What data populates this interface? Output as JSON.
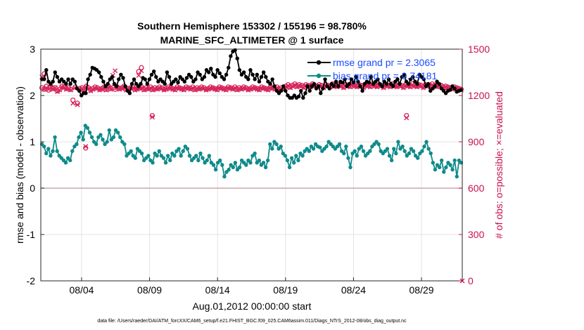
{
  "chart_data": {
    "type": "line",
    "title_line1": "Southern Hemisphere 153302 / 155196 = 98.780%",
    "title_line2": "MARINE_SFC_ALTIMETER @ 1 surface",
    "ylabel_left": "rmse and bias (model - observation)",
    "ylabel_right": "# of obs: o=possible; ×=evaluated",
    "xlabel": "Aug.01,2012 00:00:00 start",
    "footnote": "data file: /Users/raeder/DAI/ATM_forcXX/CAM6_setup/f.e21.FHIST_BGC.f09_025.CAM6assim.011/Diags_NTrS_2012-08/obs_diag_output.nc",
    "x_range_days": [
      0,
      31
    ],
    "ylim_left": [
      -2,
      3
    ],
    "ylim_right": [
      0,
      1500
    ],
    "left_ticks": [
      -2,
      -1,
      0,
      1,
      2,
      3
    ],
    "left_tick_labels": [
      "-2",
      "-1",
      "0",
      "1",
      "2",
      "3"
    ],
    "right_ticks": [
      0,
      300,
      600,
      900,
      1200,
      1500
    ],
    "right_tick_labels": [
      "0",
      "300",
      "600",
      "900",
      "1200",
      "1500"
    ],
    "x_ticks_days": [
      3,
      8,
      13,
      18,
      23,
      28
    ],
    "x_tick_labels": [
      "08/04",
      "08/09",
      "08/14",
      "08/19",
      "08/24",
      "08/29"
    ],
    "grid": true,
    "legend_position": "top-right",
    "series": [
      {
        "name": "rmse",
        "legend_label": "rmse grand pr = 2.3065",
        "color": "#000000",
        "axis": "left",
        "values": [
          2.35,
          2.35,
          2.55,
          2.3,
          2.25,
          2.3,
          2.5,
          2.4,
          2.3,
          2.35,
          2.3,
          2.25,
          2.35,
          2.25,
          2.35,
          2.3,
          2.15,
          2.1,
          2.0,
          2.05,
          2.05,
          2.35,
          2.45,
          2.6,
          2.58,
          2.55,
          2.5,
          2.4,
          2.3,
          2.2,
          2.25,
          2.35,
          2.4,
          2.25,
          2.2,
          2.35,
          2.45,
          2.38,
          2.2,
          2.1,
          2.05,
          2.25,
          2.35,
          2.25,
          2.2,
          2.25,
          2.38,
          2.35,
          2.25,
          2.35,
          2.45,
          2.52,
          2.4,
          2.3,
          2.35,
          2.3,
          2.25,
          2.5,
          2.4,
          2.25,
          2.3,
          2.35,
          2.28,
          2.4,
          2.35,
          2.3,
          2.38,
          2.45,
          2.4,
          2.3,
          2.35,
          2.5,
          2.45,
          2.35,
          2.4,
          2.55,
          2.5,
          2.58,
          2.45,
          2.4,
          2.55,
          2.48,
          2.4,
          2.35,
          2.45,
          2.6,
          2.85,
          2.95,
          2.98,
          2.8,
          2.55,
          2.45,
          2.5,
          2.4,
          2.35,
          2.55,
          2.45,
          2.35,
          2.45,
          2.3,
          2.4,
          2.5,
          2.4,
          2.3,
          2.25,
          2.35,
          2.2,
          2.1,
          2.05,
          2.1,
          2.2,
          2.1,
          2.0,
          1.95,
          1.95,
          2.0,
          1.95,
          1.98,
          2.1,
          1.95,
          2.05,
          2.2,
          2.1,
          2.2,
          2.25,
          2.15,
          2.2,
          2.05,
          2.15,
          2.35,
          2.2,
          2.15,
          2.25,
          2.2,
          2.3,
          2.2,
          2.3,
          2.28,
          2.35,
          2.2,
          2.25,
          2.35,
          2.28,
          2.4,
          2.3,
          2.2,
          2.1,
          2.25,
          2.3,
          2.28,
          2.4,
          2.25,
          2.3,
          2.35,
          2.25,
          2.2,
          2.3,
          2.25,
          2.35,
          2.25,
          2.2,
          2.3,
          2.35,
          2.25,
          2.4,
          2.45,
          2.3,
          2.25,
          2.35,
          2.4,
          2.3,
          2.25,
          2.45,
          2.4,
          2.35,
          2.2,
          2.25,
          2.1,
          2.15,
          2.2,
          2.3,
          2.25,
          2.15,
          2.1,
          2.05,
          2.1,
          2.12,
          2.2,
          2.15,
          2.08,
          2.1,
          2.12
        ]
      },
      {
        "name": "bias",
        "legend_label": "bias grand pr = 0.74181",
        "color": "#0f8a8a",
        "axis": "left",
        "values": [
          0.95,
          0.9,
          0.75,
          0.85,
          0.7,
          0.8,
          1.1,
          0.8,
          0.7,
          0.65,
          0.6,
          0.55,
          0.65,
          0.6,
          0.8,
          0.9,
          0.95,
          1.1,
          1.2,
          1.05,
          1.35,
          1.3,
          1.2,
          1.1,
          1.0,
          0.95,
          1.1,
          1.15,
          1.05,
          0.95,
          1.0,
          1.25,
          1.05,
          1.1,
          1.25,
          1.2,
          1.1,
          1.0,
          0.95,
          0.7,
          0.75,
          0.8,
          0.7,
          0.65,
          0.85,
          0.8,
          0.75,
          0.6,
          0.65,
          0.7,
          0.6,
          0.55,
          0.75,
          0.7,
          0.8,
          0.7,
          0.65,
          0.55,
          0.7,
          0.6,
          0.75,
          0.7,
          0.8,
          0.85,
          0.7,
          0.8,
          0.9,
          0.85,
          0.7,
          0.6,
          0.65,
          0.7,
          0.6,
          0.75,
          0.65,
          0.55,
          0.6,
          0.7,
          0.55,
          0.5,
          0.4,
          0.55,
          0.6,
          0.5,
          0.25,
          0.35,
          0.4,
          0.5,
          0.45,
          0.55,
          0.4,
          0.45,
          0.6,
          0.55,
          0.5,
          0.6,
          0.55,
          0.7,
          0.75,
          0.55,
          0.6,
          0.5,
          0.55,
          0.45,
          0.6,
          0.95,
          0.85,
          1.0,
          0.95,
          0.85,
          0.9,
          0.75,
          0.7,
          0.6,
          0.45,
          0.65,
          0.55,
          0.7,
          0.6,
          0.75,
          0.7,
          0.8,
          0.85,
          0.8,
          0.9,
          0.85,
          0.95,
          0.9,
          0.88,
          0.8,
          0.85,
          0.9,
          1.0,
          0.95,
          0.9,
          0.85,
          0.9,
          0.95,
          0.8,
          0.75,
          0.9,
          0.65,
          0.45,
          0.75,
          0.8,
          0.7,
          0.85,
          0.9,
          0.8,
          0.7,
          0.75,
          0.8,
          0.9,
          0.95,
          1.0,
          0.95,
          0.8,
          0.75,
          0.8,
          0.85,
          0.7,
          0.6,
          0.85,
          0.75,
          1.0,
          0.85,
          0.9,
          0.8,
          0.7,
          0.75,
          0.85,
          0.8,
          0.7,
          0.65,
          0.75,
          0.8,
          0.9,
          1.0,
          0.85,
          0.75,
          0.55,
          0.4,
          0.5,
          0.45,
          0.6,
          0.35,
          0.45,
          0.55,
          0.5,
          0.4,
          0.6,
          0.25,
          0.6,
          0.55
        ]
      },
      {
        "name": "obs_possible",
        "marker": "o",
        "color": "#d6245a",
        "axis": "right",
        "values": [
          1250,
          1240,
          1260,
          1235,
          1255,
          1245,
          1250,
          1230,
          1240,
          1260,
          1255,
          1245,
          1250,
          1240,
          1170,
          1255,
          1150,
          1245,
          1250,
          1240,
          1260,
          1250,
          1235,
          1245,
          1255,
          1250,
          1240,
          1245,
          1255,
          1240,
          1260,
          1245,
          1250,
          1240,
          1255,
          1245,
          1250,
          1260,
          1240,
          1245,
          1250,
          1255,
          1240,
          1245,
          1250,
          1255,
          1240,
          1250,
          1245,
          1255,
          1240,
          1250,
          1245,
          1255,
          1250,
          1240,
          1245,
          1255,
          1250,
          1245,
          1240,
          1255,
          1250,
          1245,
          1240,
          1255,
          1250,
          1245,
          1255,
          1240,
          1250,
          1245,
          1255,
          1250,
          1240,
          1245,
          1255,
          1250,
          1245,
          1240,
          1255,
          1250,
          1245,
          1240,
          1255,
          1250,
          1245,
          1255,
          1240,
          1250,
          1245,
          1255,
          1250,
          1240,
          1245,
          1255,
          1250,
          1245,
          1240,
          1255,
          1250,
          1245,
          1240,
          1255,
          1250,
          1245,
          1255,
          1240,
          1250,
          1245,
          1260,
          1270,
          1255,
          1265,
          1275,
          1260,
          1270,
          1265,
          1255,
          1270,
          1265,
          1260,
          1275,
          1265,
          1260,
          1270,
          1265,
          1255,
          1270,
          1265,
          1260,
          1275,
          1265,
          1260,
          1270,
          1265,
          1255,
          1270,
          1265,
          1260,
          1275,
          1265,
          1260,
          1270,
          1265,
          1255,
          1270,
          1265,
          1260,
          1275,
          1265,
          1260,
          1270,
          1265,
          1255,
          1270,
          1265,
          1260,
          1275,
          1265,
          1260,
          1270,
          1265,
          1255,
          1270,
          1265,
          1260,
          1275,
          1265,
          1260,
          1270,
          1265,
          1255,
          1270,
          1265,
          1260,
          1275,
          1265,
          1260,
          1270,
          1265,
          1255,
          1260,
          1255,
          1250,
          1245,
          1255,
          1250,
          1245,
          1240
        ]
      },
      {
        "name": "obs_evaluated",
        "marker": "x",
        "color": "#d6245a",
        "axis": "right",
        "values": [
          1320,
          1240,
          1250,
          1240,
          1255,
          1240,
          1250,
          1225,
          1235,
          1255,
          1250,
          1240,
          1245,
          1235,
          1150,
          1250,
          1140,
          1240,
          1245,
          1235,
          1255,
          1245,
          1230,
          1240,
          1250,
          1245,
          1235,
          1240,
          1250,
          1235,
          1255,
          1240,
          1330,
          1360,
          1250,
          1240,
          1245,
          1255,
          1235,
          1240,
          1245,
          1250,
          1235,
          1240,
          1245,
          1250,
          1235,
          1245,
          1240,
          1250,
          1235,
          1245,
          1240,
          1250,
          1245,
          1235,
          1240,
          1250,
          1245,
          1240,
          1235,
          1250,
          1245,
          1240,
          1235,
          1250,
          1245,
          1240,
          1250,
          1235,
          1245,
          1240,
          1250,
          1245,
          1235,
          1240,
          1250,
          1245,
          1240,
          1235,
          1250,
          1245,
          1240,
          1235,
          1250,
          1245,
          1240,
          1250,
          1235,
          1245,
          1240,
          1250,
          1245,
          1235,
          1240,
          1250,
          1245,
          1240,
          1235,
          1250,
          1245,
          1240,
          1235,
          1250,
          1245,
          1240,
          1250,
          1235,
          1245,
          1240,
          1255,
          1265,
          1250,
          1260,
          1270,
          1255,
          1265,
          1260,
          1250,
          1265,
          1260,
          1255,
          1270,
          1260,
          1255,
          1265,
          1260,
          1250,
          1265,
          1260,
          1255,
          1270,
          1260,
          1255,
          1265,
          1260,
          1250,
          1265,
          1260,
          1255,
          1270,
          1260,
          1255,
          1265,
          1260,
          1250,
          1265,
          1260,
          1255,
          1270,
          1260,
          1255,
          1265,
          1260,
          1250,
          1265,
          1260,
          1255,
          1270,
          1260,
          1255,
          1265,
          1260,
          1250,
          1265,
          1260,
          1255,
          1270,
          1260,
          1255,
          1265,
          1260,
          1250,
          1265,
          1260,
          1255,
          1270,
          1260,
          1255,
          1265,
          1260,
          1250,
          1255,
          1250,
          1245,
          1240,
          1250,
          1245,
          1240,
          1235
        ]
      }
    ],
    "annotations": {
      "obs_possible_isolated_days": [
        0.25,
        3.3,
        7.2,
        7.4,
        8.2,
        26.9
      ],
      "obs_possible_isolated_values": [
        1340,
        860,
        1355,
        1380,
        1070,
        1070
      ],
      "obs_evaluated_isolated_days": [
        0.25,
        3.3,
        7.2,
        7.4,
        8.2,
        26.9,
        31
      ],
      "obs_evaluated_isolated_values": [
        1320,
        870,
        1330,
        1360,
        1060,
        1055,
        0
      ]
    }
  }
}
